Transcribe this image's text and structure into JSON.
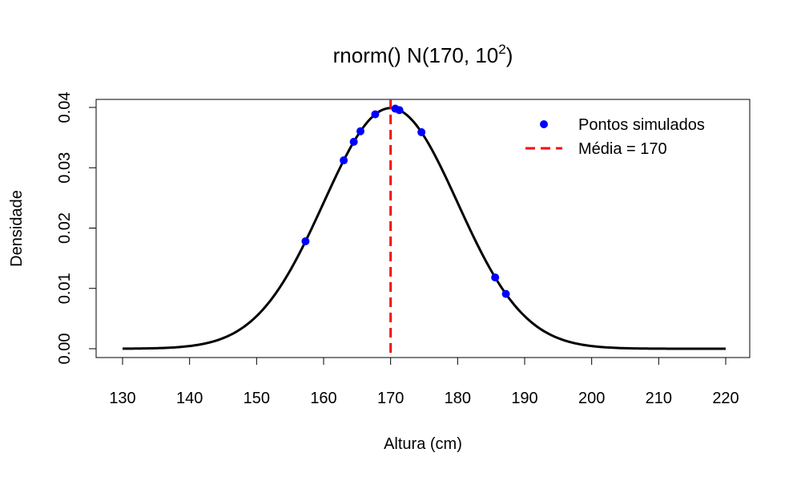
{
  "chart_data": {
    "type": "line",
    "title": {
      "prefix": "rnorm() N",
      "args": "170, 10",
      "sup": "2"
    },
    "xlabel": "Altura (cm)",
    "ylabel": "Densidade",
    "xlim": [
      130,
      220
    ],
    "ylim": [
      0,
      0.04
    ],
    "xticks": [
      130,
      140,
      150,
      160,
      170,
      180,
      190,
      200,
      210,
      220
    ],
    "xtick_labels": [
      "130",
      "140",
      "150",
      "160",
      "170",
      "180",
      "190",
      "200",
      "210",
      "220"
    ],
    "yticks": [
      0,
      0.01,
      0.02,
      0.03,
      0.04
    ],
    "ytick_labels": [
      "0.00",
      "0.01",
      "0.02",
      "0.03",
      "0.04"
    ],
    "curve": {
      "mean": 170,
      "sd": 10,
      "x_from": 130,
      "x_to": 220,
      "color": "#000000"
    },
    "points": {
      "name": "Pontos simulados",
      "color": "#0000FF",
      "x": [
        157.3,
        163.0,
        164.5,
        165.5,
        167.7,
        170.7,
        171.3,
        174.6,
        185.6,
        187.2
      ]
    },
    "mean_line": {
      "name": "Média = 170",
      "x": 170,
      "color": "#FF0000"
    },
    "legend_position": "top-right",
    "grid": false
  }
}
